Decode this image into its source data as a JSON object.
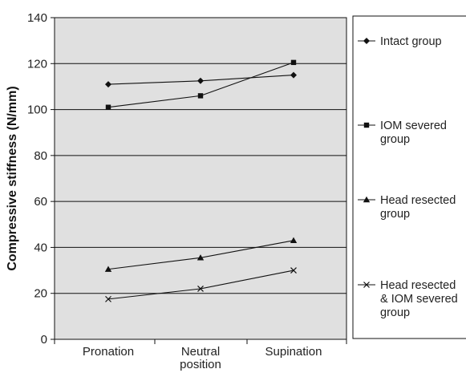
{
  "chart_data": {
    "type": "line",
    "categories": [
      [
        "Pronation"
      ],
      [
        "Neutral",
        "position"
      ],
      [
        "Supination"
      ]
    ],
    "ylabel": "Compressive stiffness (N/mm)",
    "ylim": [
      0,
      140
    ],
    "yticks": [
      0,
      20,
      40,
      60,
      80,
      100,
      120,
      140
    ],
    "grid": true,
    "background": "#e0e0e0",
    "legend_position": "right",
    "series": [
      {
        "name": [
          "Intact group"
        ],
        "marker": "diamond",
        "values": [
          111,
          112.5,
          115
        ]
      },
      {
        "name": [
          "IOM severed",
          "group"
        ],
        "marker": "square",
        "values": [
          101,
          106,
          120.5
        ]
      },
      {
        "name": [
          "Head resected",
          "group"
        ],
        "marker": "triangle",
        "values": [
          30.5,
          35.5,
          43
        ]
      },
      {
        "name": [
          "Head resected",
          "& IOM severed",
          "group"
        ],
        "marker": "x",
        "values": [
          17.5,
          22,
          30
        ]
      }
    ]
  }
}
